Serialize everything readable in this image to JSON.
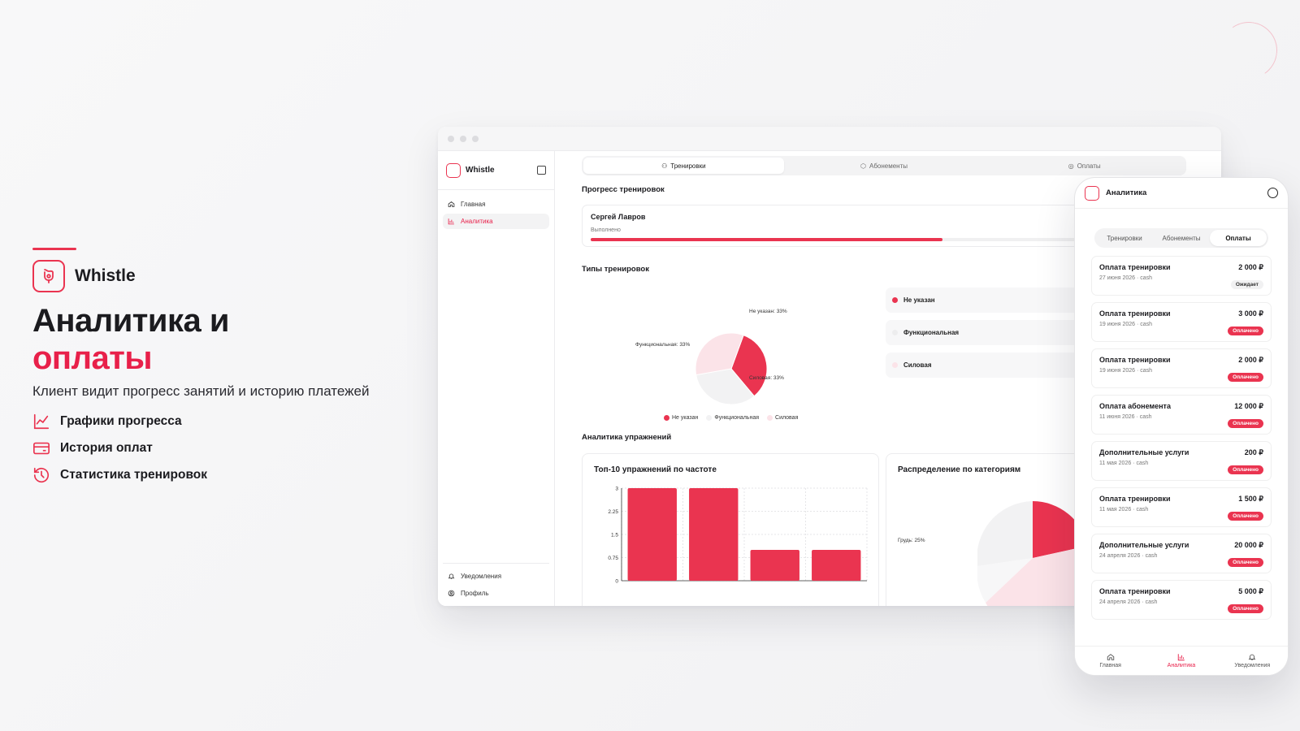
{
  "hero": {
    "brand": "Whistle",
    "title_line1": "Аналитика и",
    "title_line2": "оплаты",
    "subtitle": "Клиент видит прогресс занятий и историю платежей",
    "features": [
      {
        "label": "Графики прогресса",
        "icon": "chart-line-icon"
      },
      {
        "label": "История оплат",
        "icon": "credit-card-icon"
      },
      {
        "label": "Статистика тренировок",
        "icon": "history-icon"
      }
    ]
  },
  "desktop": {
    "app_name": "Whistle",
    "nav": [
      {
        "label": "Главная",
        "icon": "home-icon",
        "active": false
      },
      {
        "label": "Аналитика",
        "icon": "bar-chart-icon",
        "active": true
      }
    ],
    "nav_bottom": [
      {
        "label": "Уведомления",
        "icon": "bell-icon"
      },
      {
        "label": "Профиль",
        "icon": "user-icon"
      }
    ],
    "tabs": [
      {
        "label": "Тренировки",
        "icon": "dumbbell-icon",
        "active": true
      },
      {
        "label": "Абонементы",
        "icon": "box-icon",
        "active": false
      },
      {
        "label": "Оплаты",
        "icon": "coins-icon",
        "active": false
      }
    ],
    "progress_title": "Прогресс тренировок",
    "progress": {
      "name": "Сергей Лавров",
      "label": "Выполнено",
      "value": 0.6
    },
    "types_title": "Типы тренировок",
    "types": [
      {
        "label": "Не указан",
        "color": "#ea3450"
      },
      {
        "label": "Функциональная",
        "color": "#f2f2f3"
      },
      {
        "label": "Силовая",
        "color": "#fbe3e8"
      }
    ],
    "exercises_title": "Аналитика упражнений",
    "top10_title": "Топ-10 упражнений по частоте",
    "categories_title": "Распределение по категориям",
    "categories_partial_label": "Грудь: 25%"
  },
  "chart_data": [
    {
      "type": "pie",
      "title": "Типы тренировок",
      "labels": [
        "Не указан",
        "Функциональная",
        "Силовая"
      ],
      "values": [
        33,
        33,
        33
      ],
      "slice_labels": [
        "Не указан: 33%",
        "Функциональная: 33%",
        "Силовая: 33%"
      ],
      "colors": [
        "#ea3450",
        "#f2f2f3",
        "#fbe3e8"
      ],
      "legend": "bottom"
    },
    {
      "type": "bar",
      "title": "Топ-10 упражнений по частоте",
      "values": [
        3,
        3,
        1,
        1
      ],
      "yticks": [
        "0",
        "0.75",
        "1.5",
        "2.25",
        "3"
      ],
      "ylim": [
        0,
        3
      ],
      "color": "#ea3450",
      "grid": true
    }
  ],
  "phone": {
    "title": "Аналитика",
    "tabs": [
      {
        "label": "Тренировки",
        "active": false
      },
      {
        "label": "Абонементы",
        "active": false
      },
      {
        "label": "Оплаты",
        "active": true
      }
    ],
    "payments": [
      {
        "title": "Оплата тренировки",
        "meta": "27 июня 2026 · cash",
        "amount": "2 000 ₽",
        "status": "Ожидает",
        "paid": false
      },
      {
        "title": "Оплата тренировки",
        "meta": "19 июня 2026 · cash",
        "amount": "3 000 ₽",
        "status": "Оплачено",
        "paid": true
      },
      {
        "title": "Оплата тренировки",
        "meta": "19 июня 2026 · cash",
        "amount": "2 000 ₽",
        "status": "Оплачено",
        "paid": true
      },
      {
        "title": "Оплата абонемента",
        "meta": "11 июня 2026 · cash",
        "amount": "12 000 ₽",
        "status": "Оплачено",
        "paid": true
      },
      {
        "title": "Дополнительные услуги",
        "meta": "11 мая 2026 · cash",
        "amount": "200 ₽",
        "status": "Оплачено",
        "paid": true
      },
      {
        "title": "Оплата тренировки",
        "meta": "11 мая 2026 · cash",
        "amount": "1 500 ₽",
        "status": "Оплачено",
        "paid": true
      },
      {
        "title": "Дополнительные услуги",
        "meta": "24 апреля 2026 · cash",
        "amount": "20 000 ₽",
        "status": "Оплачено",
        "paid": true
      },
      {
        "title": "Оплата тренировки",
        "meta": "24 апреля 2026 · cash",
        "amount": "5 000 ₽",
        "status": "Оплачено",
        "paid": true
      }
    ],
    "nav": [
      {
        "label": "Главная",
        "icon": "home-icon",
        "active": false
      },
      {
        "label": "Аналитика",
        "icon": "bar-chart-icon",
        "active": true
      },
      {
        "label": "Уведомления",
        "icon": "bell-icon",
        "active": false
      }
    ]
  },
  "colors": {
    "accent": "#ea3450",
    "text": "#1b1b1f",
    "muted": "#777777"
  }
}
